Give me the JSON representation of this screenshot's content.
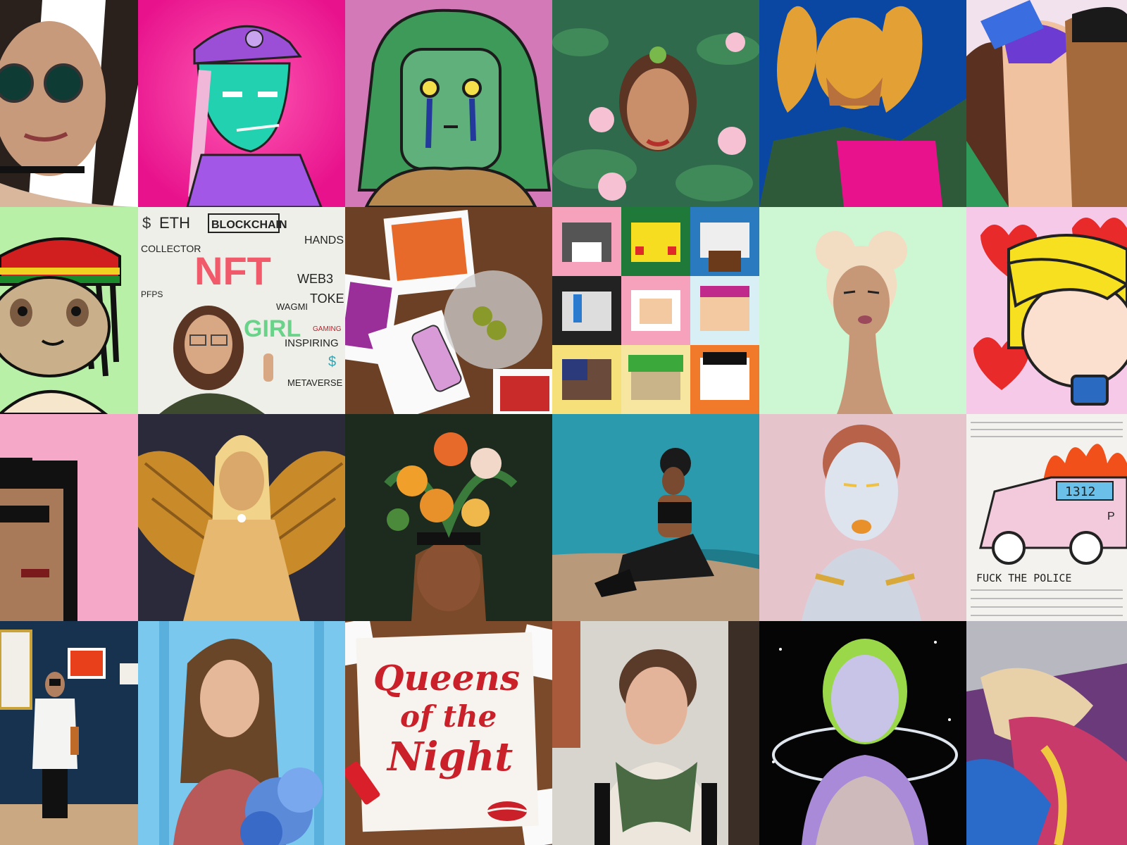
{
  "collage": {
    "colors": {
      "hot_pink": "#e8128c",
      "mauve": "#d479b8",
      "lily_green": "#2f6a4d",
      "royal_blue": "#0a47a3",
      "pale_green": "#cdf7d3",
      "pastel_pink": "#f6a8c8",
      "dark_forest": "#1d2a1e",
      "night_navy": "#17324f"
    },
    "tiles": [
      {
        "name": "braids-sunglasses-portrait"
      },
      {
        "name": "teal-face-purple-cap"
      },
      {
        "name": "green-hair-crying-girl"
      },
      {
        "name": "woman-in-lily-pond"
      },
      {
        "name": "pigtails-green-jacket"
      },
      {
        "name": "colorful-faces-group"
      },
      {
        "name": "rasta-sloth"
      },
      {
        "name": "nft-wall-selfie",
        "wall_words": [
          "$",
          "ETH",
          "BLOCKCHAIN",
          "HANDS",
          "COLLECTOR",
          "NFT",
          "WEB3",
          "PFPS",
          "WAGMI",
          "TOKEN",
          "GIRL",
          "GAMING",
          "INSPIRING",
          "METAVERSE",
          "$"
        ]
      },
      {
        "name": "polaroids-martini-table"
      },
      {
        "name": "pixel-cats-grid"
      },
      {
        "name": "minimal-bun-woman"
      },
      {
        "name": "blonde-chibi-hearts"
      },
      {
        "name": "pixel-punk-woman"
      },
      {
        "name": "golden-winged-goddess"
      },
      {
        "name": "flower-head-woman"
      },
      {
        "name": "woman-teal-backdrop"
      },
      {
        "name": "chrome-3d-woman"
      },
      {
        "name": "burning-police-car",
        "plate": "1312",
        "caption": "FUCK THE POLICE",
        "car_text": "P"
      },
      {
        "name": "gallery-visitor"
      },
      {
        "name": "woman-blue-wall"
      },
      {
        "name": "queens-of-the-night-poster",
        "title_lines": [
          "Queens",
          "of the",
          "Night"
        ]
      },
      {
        "name": "woman-green-scarf"
      },
      {
        "name": "neon-cosmic-figure"
      },
      {
        "name": "abstract-paint"
      }
    ]
  }
}
